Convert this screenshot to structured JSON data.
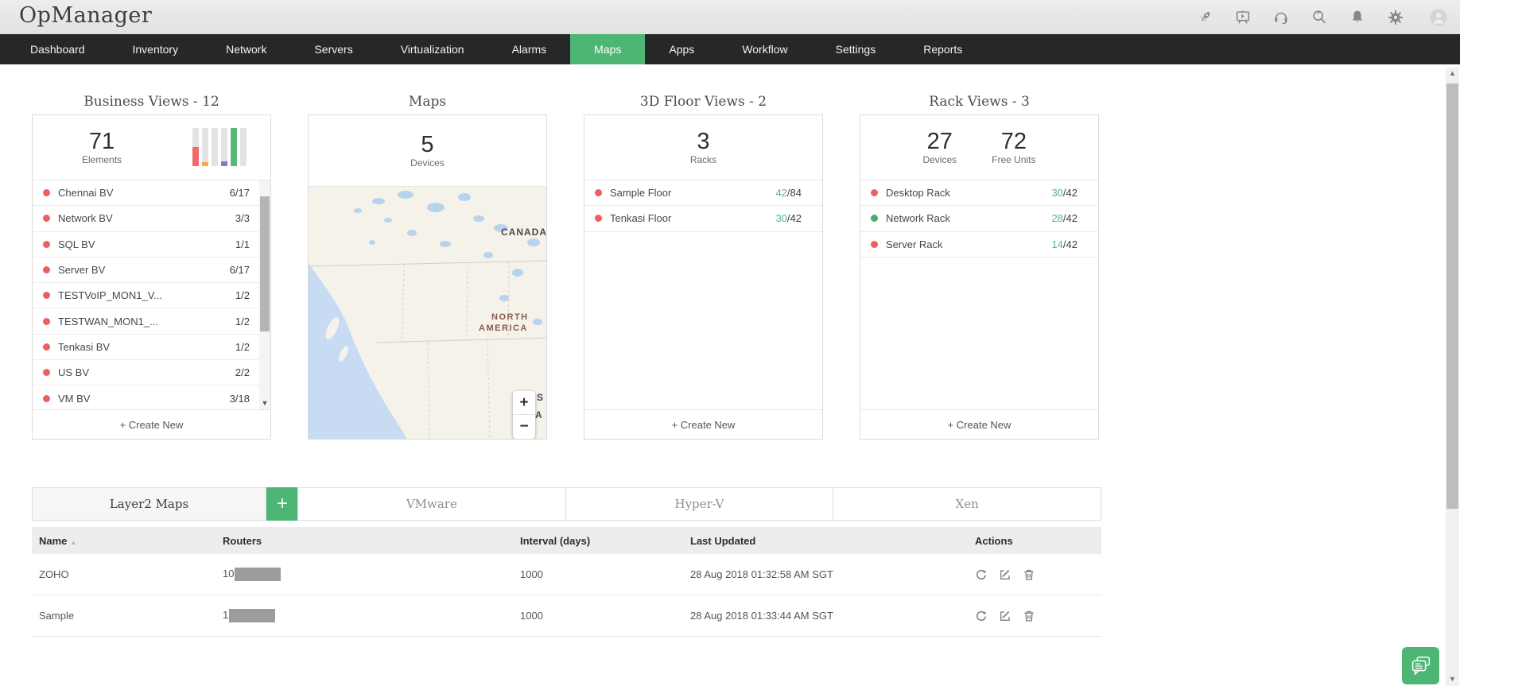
{
  "app": {
    "title": "OpManager"
  },
  "colors": {
    "accent": "#4db674",
    "red_dot": "#f25d5d",
    "green_dot": "#49ad68",
    "count_green": "#56b583",
    "nav_active": "#4db674"
  },
  "header": {
    "icons": [
      "rocket",
      "demo-video",
      "support-headset",
      "search",
      "notifications",
      "settings",
      "account-avatar"
    ]
  },
  "nav": {
    "items": [
      "Dashboard",
      "Inventory",
      "Network",
      "Servers",
      "Virtualization",
      "Alarms",
      "Maps",
      "Apps",
      "Workflow",
      "Settings",
      "Reports"
    ],
    "active": "Maps"
  },
  "cards": {
    "business_views": {
      "title": "Business Views - 12",
      "stat_value": "71",
      "stat_label": "Elements",
      "chart": {
        "bars": [
          {
            "color": "#ef6a6a",
            "pct": 50
          },
          {
            "color": "#f2a74e",
            "pct": 10
          },
          {
            "color": "#e3e3e3",
            "pct": 0
          },
          {
            "color": "#9b6fc3",
            "pct": 12
          },
          {
            "color": "#57b878",
            "pct": 100
          },
          {
            "color": "#e3e3e3",
            "pct": 0
          }
        ]
      },
      "items": [
        {
          "name": "Chennai BV",
          "count": "6/17",
          "dot": "red"
        },
        {
          "name": "Network BV",
          "count": "3/3",
          "dot": "red"
        },
        {
          "name": "SQL BV",
          "count": "1/1",
          "dot": "red"
        },
        {
          "name": "Server BV",
          "count": "6/17",
          "dot": "red"
        },
        {
          "name": "TESTVoIP_MON1_V...",
          "count": "1/2",
          "dot": "red"
        },
        {
          "name": "TESTWAN_MON1_...",
          "count": "1/2",
          "dot": "red"
        },
        {
          "name": "Tenkasi BV",
          "count": "1/2",
          "dot": "red"
        },
        {
          "name": "US BV",
          "count": "2/2",
          "dot": "red"
        },
        {
          "name": "VM BV",
          "count": "3/18",
          "dot": "red"
        }
      ],
      "footer": "+ Create New"
    },
    "maps": {
      "title": "Maps",
      "stat_value": "5",
      "stat_label": "Devices",
      "labels": {
        "country": "CANADA",
        "region_line1": "NORTH",
        "region_line2": "AMERICA",
        "partial1": "S",
        "partial2": "A"
      },
      "zoom_in": "+",
      "zoom_out": "−"
    },
    "floor_views": {
      "title": "3D Floor Views - 2",
      "stat_value": "3",
      "stat_label": "Racks",
      "items": [
        {
          "name": "Sample Floor",
          "used": "42",
          "total": "/84",
          "dot": "red"
        },
        {
          "name": "Tenkasi Floor",
          "used": "30",
          "total": "/42",
          "dot": "red"
        }
      ],
      "footer": "+ Create New"
    },
    "rack_views": {
      "title": "Rack Views - 3",
      "stats": [
        {
          "value": "27",
          "label": "Devices"
        },
        {
          "value": "72",
          "label": "Free Units"
        }
      ],
      "items": [
        {
          "name": "Desktop Rack",
          "used": "30",
          "total": "/42",
          "dot": "red"
        },
        {
          "name": "Network Rack",
          "used": "28",
          "total": "/42",
          "dot": "green"
        },
        {
          "name": "Server Rack",
          "used": "14",
          "total": "/42",
          "dot": "red"
        }
      ],
      "footer": "+ Create New"
    }
  },
  "lower": {
    "tabs": [
      "Layer2 Maps",
      "VMware",
      "Hyper-V",
      "Xen"
    ],
    "active": "Layer2 Maps",
    "add_label": "+"
  },
  "table": {
    "columns": [
      "Name",
      "Routers",
      "Interval (days)",
      "Last Updated",
      "Actions"
    ],
    "sort_indicator": "▲",
    "rows": [
      {
        "name": "ZOHO",
        "routers_visible": "10",
        "routers_redacted": true,
        "interval": "1000",
        "updated": "28 Aug 2018 01:32:58 AM SGT"
      },
      {
        "name": "Sample",
        "routers_visible": "1",
        "routers_redacted": true,
        "interval": "1000",
        "updated": "28 Aug 2018 01:33:44 AM SGT"
      }
    ],
    "row_actions": [
      "refresh",
      "edit",
      "delete"
    ]
  }
}
